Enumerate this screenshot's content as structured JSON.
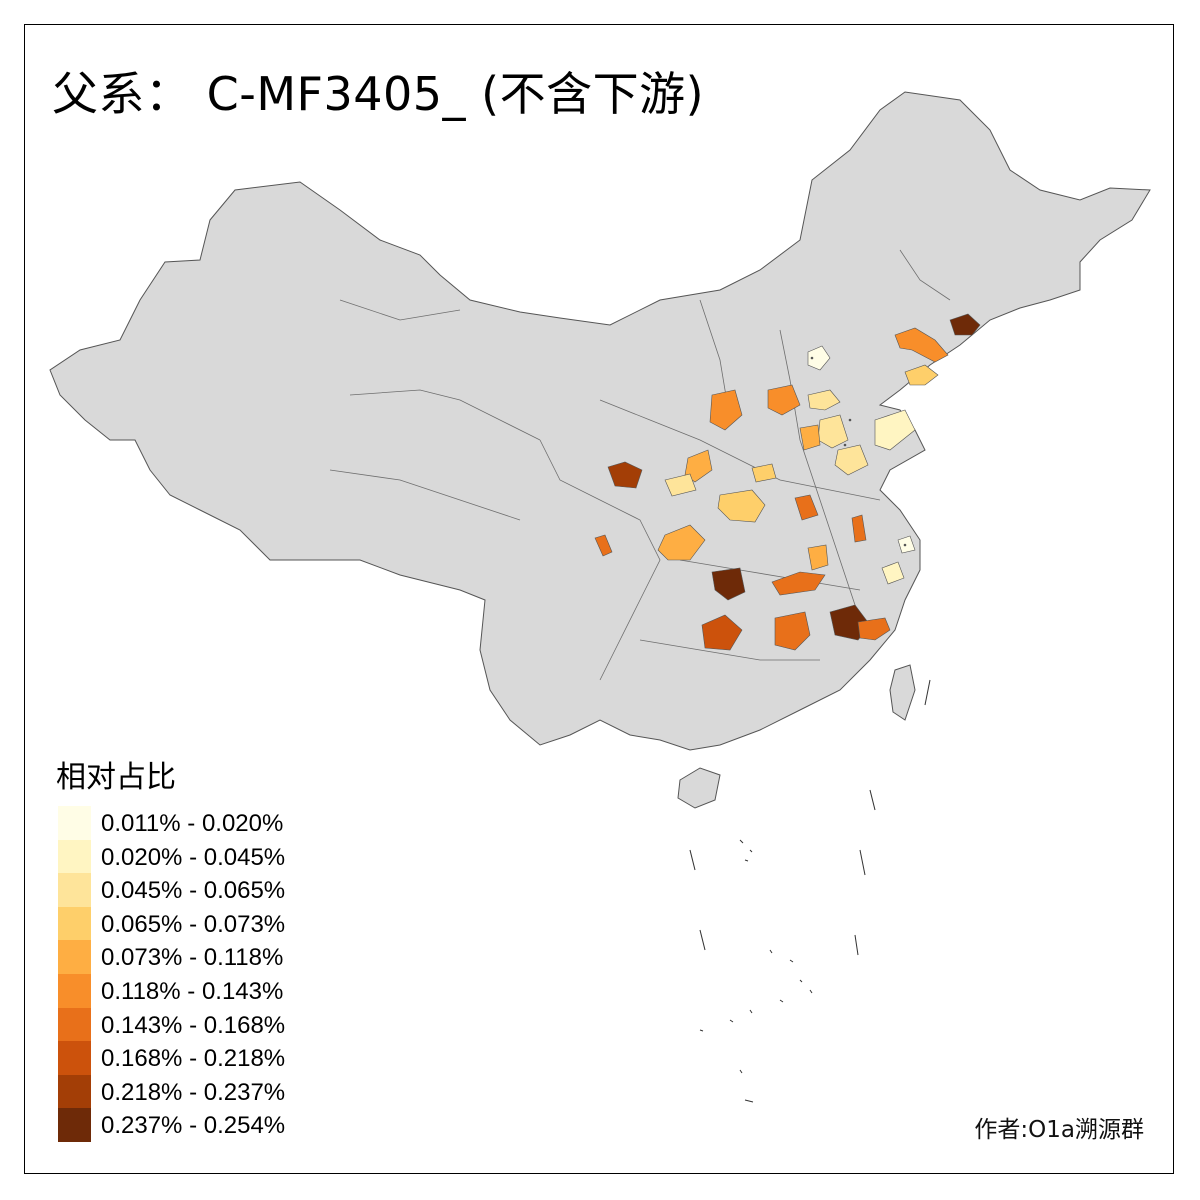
{
  "title": "父系： C-MF3405_ (不含下游)",
  "legend": {
    "title": "相对占比",
    "items": [
      {
        "label": "0.011% - 0.020%",
        "color": "#fffde6"
      },
      {
        "label": "0.020% - 0.045%",
        "color": "#fff5c2"
      },
      {
        "label": "0.045% - 0.065%",
        "color": "#fee49a"
      },
      {
        "label": "0.065% - 0.073%",
        "color": "#fecf6a"
      },
      {
        "label": "0.073% - 0.118%",
        "color": "#feae43"
      },
      {
        "label": "0.118% - 0.143%",
        "color": "#f88e2a"
      },
      {
        "label": "0.143% - 0.168%",
        "color": "#e8701a"
      },
      {
        "label": "0.168% - 0.218%",
        "color": "#cc520c"
      },
      {
        "label": "0.218% - 0.237%",
        "color": "#a33e06"
      },
      {
        "label": "0.237% - 0.254%",
        "color": "#6e2a08"
      }
    ]
  },
  "credit": "作者:O1a溯源群",
  "colors": {
    "land": "#d9d9d9",
    "border": "#6e6e6e",
    "outline": "#000000"
  }
}
